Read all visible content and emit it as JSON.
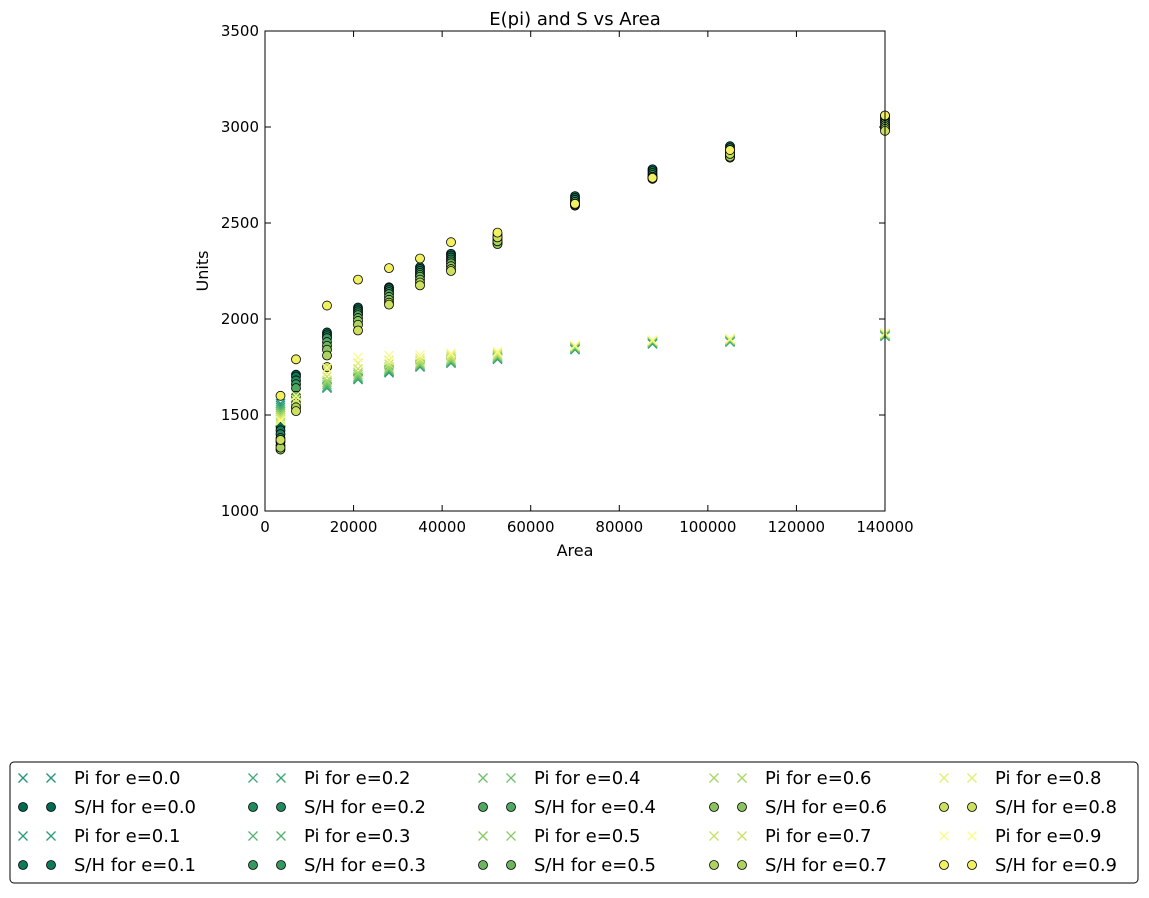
{
  "chart_data": {
    "type": "scatter",
    "title": "E(pi) and S vs Area",
    "xlabel": "Area",
    "ylabel": "Units",
    "xlim": [
      0,
      140000
    ],
    "ylim": [
      1000,
      3500
    ],
    "x_ticks": [
      0,
      20000,
      40000,
      60000,
      80000,
      100000,
      120000,
      140000
    ],
    "y_ticks": [
      1000,
      1500,
      2000,
      2500,
      3000,
      3500
    ],
    "x_tick_labels": [
      "0",
      "20000",
      "40000",
      "60000",
      "80000",
      "100000",
      "120000",
      "140000"
    ],
    "y_tick_labels": [
      "1000",
      "1500",
      "2000",
      "2500",
      "3000",
      "3500"
    ],
    "grid": false,
    "legend_placement": "bottom, below plot, 5 columns",
    "x": [
      3500,
      7000,
      14000,
      21000,
      28000,
      35000,
      42000,
      52500,
      70000,
      87500,
      105000,
      140000
    ],
    "series": [
      {
        "name": "Pi for e=0.0",
        "marker": "x",
        "color": "#22977a",
        "values": [
          1560,
          1570,
          1640,
          1685,
          1720,
          1750,
          1770,
          1790,
          1840,
          1870,
          1880,
          1910
        ]
      },
      {
        "name": "S/H for e=0.0",
        "marker": "o",
        "color": "#006b52",
        "values": [
          1440,
          1710,
          1930,
          2060,
          2165,
          2270,
          2340,
          2440,
          2640,
          2780,
          2900,
          3060
        ]
      },
      {
        "name": "Pi for e=0.1",
        "marker": "x",
        "color": "#2b9e78",
        "values": [
          1550,
          1565,
          1642,
          1688,
          1725,
          1752,
          1772,
          1792,
          1842,
          1872,
          1882,
          1912
        ]
      },
      {
        "name": "S/H for e=0.1",
        "marker": "o",
        "color": "#0e7a5a",
        "values": [
          1420,
          1700,
          1920,
          2050,
          2160,
          2260,
          2330,
          2430,
          2630,
          2770,
          2890,
          3050
        ]
      },
      {
        "name": "Pi for e=0.2",
        "marker": "x",
        "color": "#3ba874",
        "values": [
          1540,
          1560,
          1645,
          1690,
          1728,
          1755,
          1775,
          1795,
          1845,
          1875,
          1884,
          1914
        ]
      },
      {
        "name": "S/H for e=0.2",
        "marker": "o",
        "color": "#208a5e",
        "values": [
          1400,
          1680,
          1910,
          2040,
          2150,
          2250,
          2320,
          2420,
          2620,
          2760,
          2880,
          3040
        ]
      },
      {
        "name": "Pi for e=0.3",
        "marker": "x",
        "color": "#52b36f",
        "values": [
          1530,
          1555,
          1650,
          1695,
          1732,
          1758,
          1778,
          1798,
          1848,
          1878,
          1886,
          1916
        ]
      },
      {
        "name": "S/H for e=0.3",
        "marker": "o",
        "color": "#35995f",
        "values": [
          1380,
          1660,
          1900,
          2030,
          2140,
          2240,
          2310,
          2410,
          2610,
          2750,
          2870,
          3030
        ]
      },
      {
        "name": "Pi for e=0.4",
        "marker": "x",
        "color": "#6cbf6a",
        "values": [
          1520,
          1552,
          1660,
          1700,
          1736,
          1762,
          1782,
          1802,
          1850,
          1880,
          1888,
          1918
        ]
      },
      {
        "name": "S/H for e=0.4",
        "marker": "o",
        "color": "#4ea85f",
        "values": [
          1360,
          1640,
          1880,
          2020,
          2130,
          2230,
          2300,
          2400,
          2600,
          2740,
          2860,
          3020
        ]
      },
      {
        "name": "Pi for e=0.5",
        "marker": "x",
        "color": "#88cb66",
        "values": [
          1510,
          1550,
          1670,
          1710,
          1742,
          1766,
          1786,
          1806,
          1852,
          1882,
          1890,
          1920
        ]
      },
      {
        "name": "S/H for e=0.5",
        "marker": "o",
        "color": "#6bb55f",
        "values": [
          1340,
          1600,
          1860,
          2005,
          2115,
          2220,
          2290,
          2395,
          2595,
          2735,
          2850,
          3010
        ]
      },
      {
        "name": "Pi for e=0.6",
        "marker": "x",
        "color": "#a6d764",
        "values": [
          1500,
          1555,
          1680,
          1720,
          1750,
          1772,
          1792,
          1810,
          1855,
          1884,
          1892,
          1922
        ]
      },
      {
        "name": "S/H for e=0.6",
        "marker": "o",
        "color": "#8bc45e",
        "values": [
          1320,
          1560,
          1840,
          1990,
          2100,
          2205,
          2275,
          2390,
          2590,
          2730,
          2840,
          3000
        ]
      },
      {
        "name": "Pi for e=0.7",
        "marker": "x",
        "color": "#c5e267",
        "values": [
          1490,
          1565,
          1700,
          1740,
          1765,
          1782,
          1802,
          1815,
          1858,
          1886,
          1894,
          1924
        ]
      },
      {
        "name": "S/H for e=0.7",
        "marker": "o",
        "color": "#abd35e",
        "values": [
          1330,
          1540,
          1810,
          1970,
          2085,
          2190,
          2260,
          2405,
          2600,
          2735,
          2845,
          2990
        ]
      },
      {
        "name": "Pi for e=0.8",
        "marker": "x",
        "color": "#e3ee75",
        "values": [
          1480,
          1580,
          1720,
          1770,
          1785,
          1795,
          1812,
          1822,
          1860,
          1888,
          1896,
          1926
        ]
      },
      {
        "name": "S/H for e=0.8",
        "marker": "o",
        "color": "#cde05e",
        "values": [
          1370,
          1520,
          1750,
          1940,
          2075,
          2175,
          2250,
          2425,
          2595,
          2740,
          2860,
          2980
        ]
      },
      {
        "name": "Pi for e=0.9",
        "marker": "x",
        "color": "#fbfb8a",
        "values": [
          1470,
          1600,
          1745,
          1800,
          1810,
          1812,
          1822,
          1830,
          1862,
          1890,
          1898,
          1928
        ]
      },
      {
        "name": "S/H for e=0.9",
        "marker": "o",
        "color": "#f0f060",
        "values": [
          1600,
          1790,
          2070,
          2205,
          2265,
          2315,
          2400,
          2450,
          2600,
          2735,
          2880,
          3060
        ]
      }
    ]
  }
}
